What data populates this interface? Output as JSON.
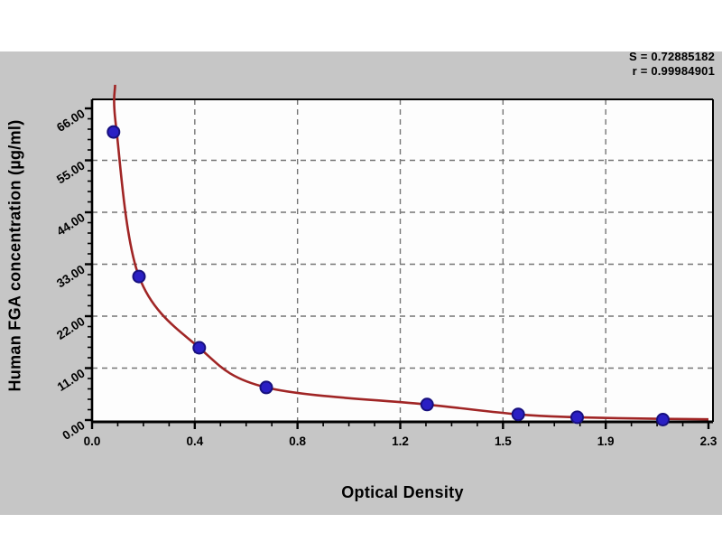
{
  "figure": {
    "stats": {
      "line1": "S = 0.72885182",
      "line2": "r = 0.99984901"
    },
    "x_axis_title": "Optical Density",
    "y_axis_title": "Human FGA concentration (µg/ml)"
  },
  "chart_data": {
    "type": "scatter",
    "title": "",
    "xlabel": "Optical Density",
    "ylabel": "Human FGA concentration (µg/ml)",
    "xlim": [
      0,
      2.3
    ],
    "ylim": [
      0,
      66
    ],
    "x_tick_labels": [
      "0.0",
      "0.4",
      "0.8",
      "1.2",
      "1.5",
      "1.9",
      "2.3"
    ],
    "y_tick_labels": [
      "0.00",
      "11.00",
      "22.00",
      "33.00",
      "44.00",
      "55.00",
      "66.00"
    ],
    "grid": true,
    "legend_position": "none",
    "fit_stats": {
      "S": "0.72885182",
      "r": "0.99984901"
    },
    "series": [
      {
        "name": "standards",
        "type": "scatter",
        "points": [
          {
            "od": 0.08,
            "conc": 61.0
          },
          {
            "od": 0.175,
            "conc": 30.4
          },
          {
            "od": 0.4,
            "conc": 15.3
          },
          {
            "od": 0.65,
            "conc": 6.9
          },
          {
            "od": 1.25,
            "conc": 3.3
          },
          {
            "od": 1.59,
            "conc": 1.2
          },
          {
            "od": 1.81,
            "conc": 0.6
          },
          {
            "od": 2.13,
            "conc": 0.1
          }
        ]
      },
      {
        "name": "fitted-curve",
        "type": "line",
        "points": [
          {
            "od": 0.086,
            "conc": 71.0
          },
          {
            "od": 0.09,
            "conc": 62.0
          },
          {
            "od": 0.175,
            "conc": 30.4
          },
          {
            "od": 0.4,
            "conc": 15.3
          },
          {
            "od": 0.65,
            "conc": 6.9
          },
          {
            "od": 1.25,
            "conc": 3.3
          },
          {
            "od": 1.59,
            "conc": 1.2
          },
          {
            "od": 1.81,
            "conc": 0.6
          },
          {
            "od": 2.13,
            "conc": 0.25
          },
          {
            "od": 2.3,
            "conc": 0.15
          }
        ]
      }
    ],
    "colors": {
      "curve": "#a02525",
      "marker_fill": "#2a1fc4",
      "marker_edge": "#17107e",
      "panel_bg": "#c6c6c6",
      "plot_bg": "#fdfdfd",
      "grid": "#757575",
      "frame": "#000000",
      "text": "#000000"
    }
  }
}
